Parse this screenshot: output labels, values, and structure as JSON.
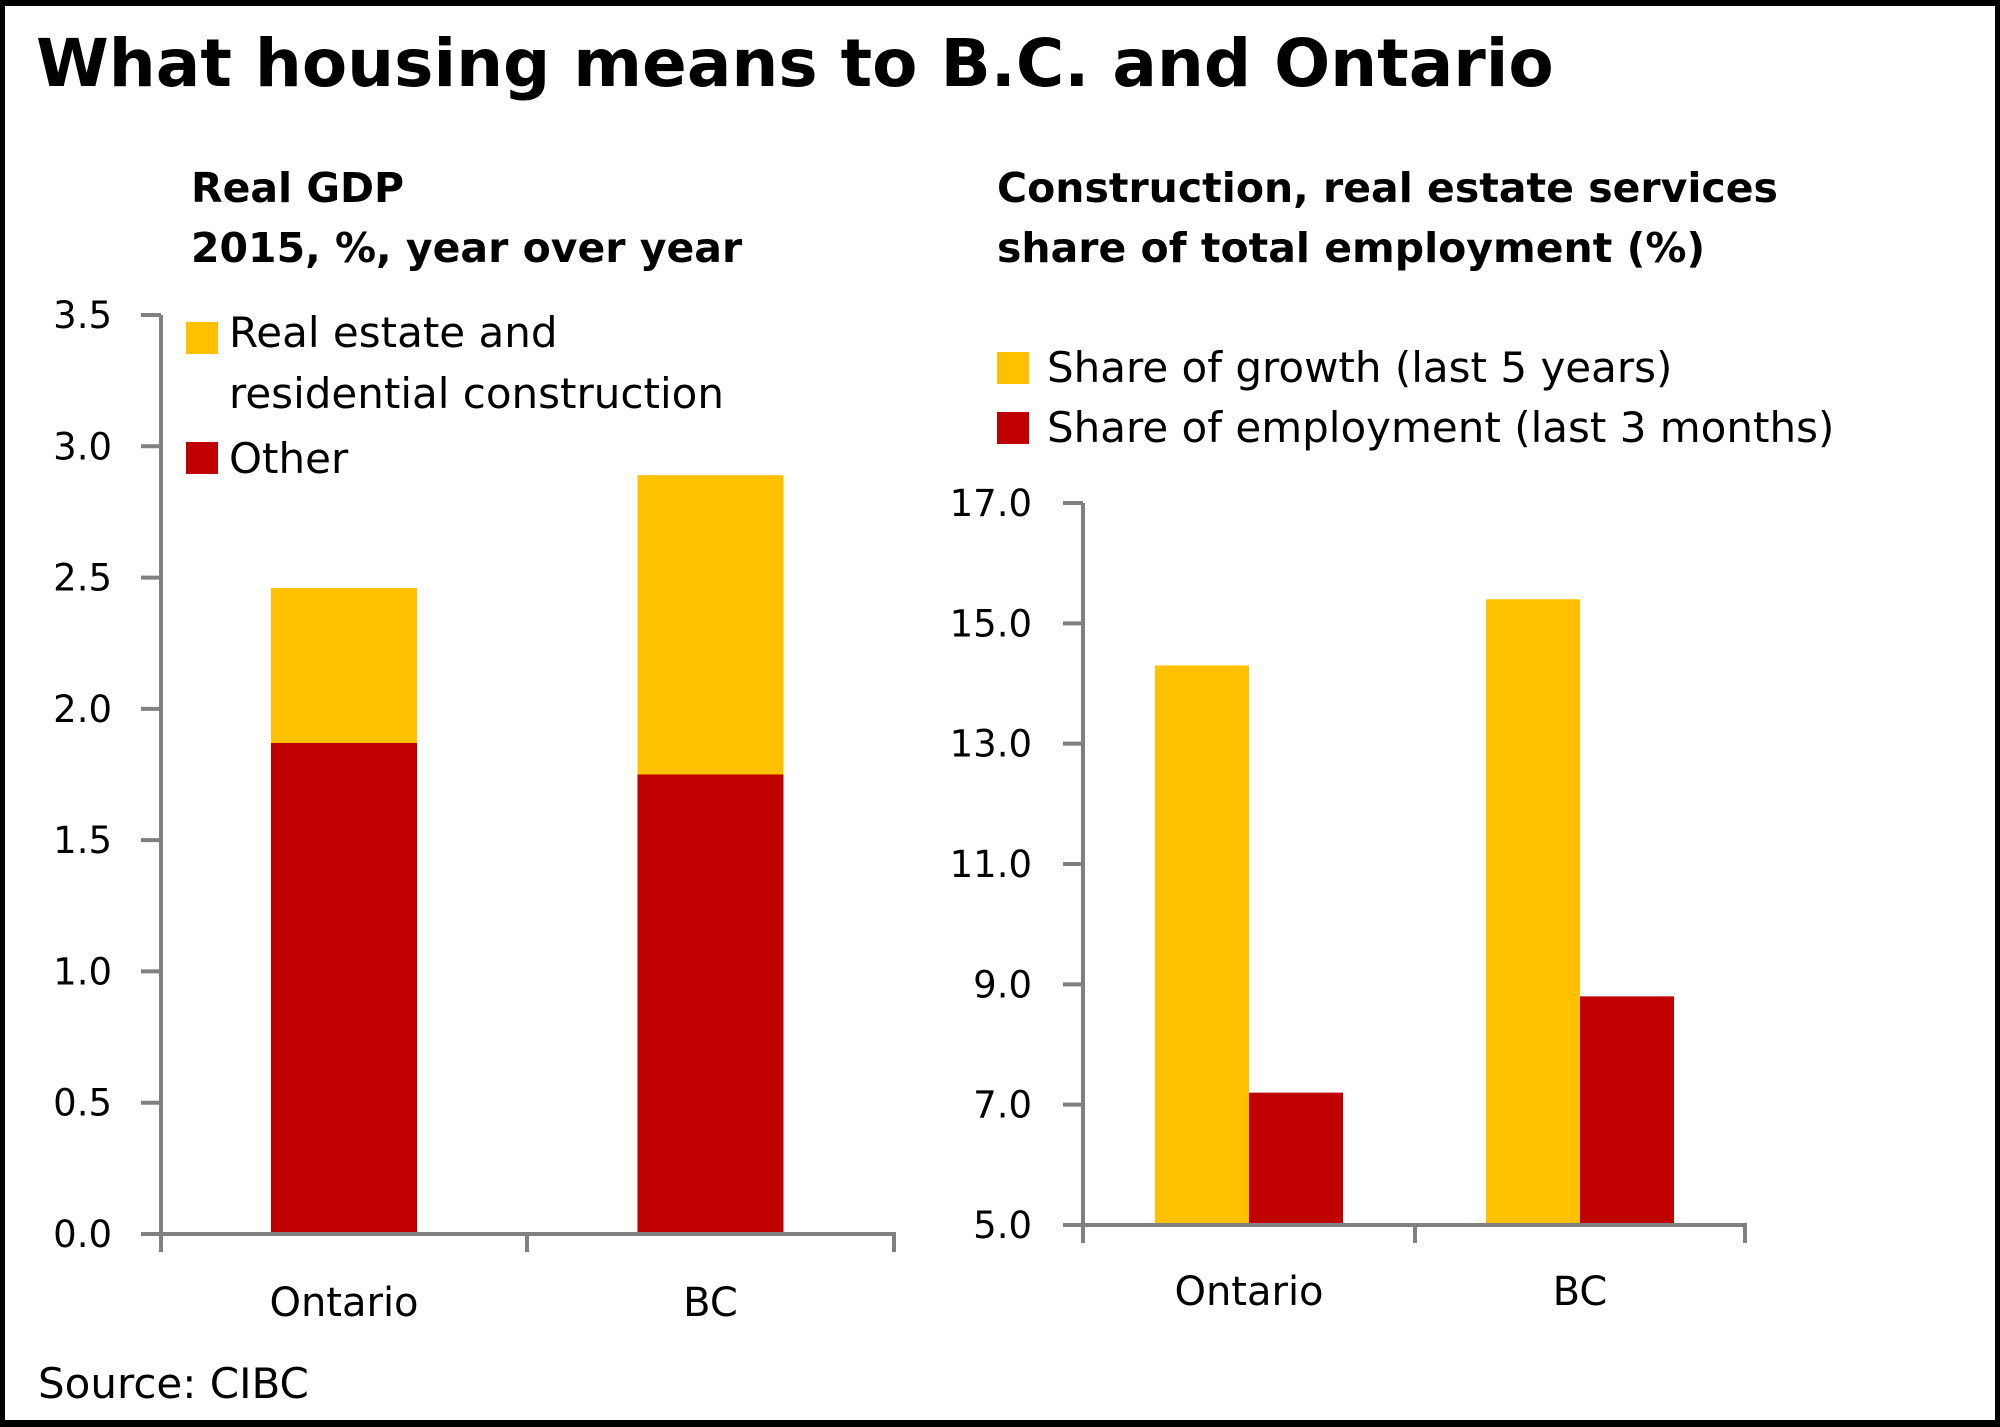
{
  "title": "What housing means to B.C. and Ontario",
  "source": "Source: CIBC",
  "colors": {
    "yellow": "#FFC000",
    "red": "#C00000",
    "axis": "#808080"
  },
  "chart_data": [
    {
      "type": "bar",
      "stacked": true,
      "title_lines": [
        "Real GDP",
        "2015, %, year over year"
      ],
      "categories": [
        "Ontario",
        "BC"
      ],
      "series": [
        {
          "name": "Other",
          "color": "#C00000",
          "values": [
            1.87,
            1.75
          ]
        },
        {
          "name_lines": [
            "Real estate and",
            "residential construction"
          ],
          "name": "Real estate and residential construction",
          "color": "#FFC000",
          "values": [
            0.59,
            1.14
          ]
        }
      ],
      "ylim": [
        0.0,
        3.5
      ],
      "yticks": [
        "0.0",
        "0.5",
        "1.0",
        "1.5",
        "2.0",
        "2.5",
        "3.0",
        "3.5"
      ],
      "ytick_values": [
        0.0,
        0.5,
        1.0,
        1.5,
        2.0,
        2.5,
        3.0,
        3.5
      ],
      "legend_order": [
        1,
        0
      ],
      "legend_position": "top-left",
      "grid": false,
      "xlabel": "",
      "ylabel": ""
    },
    {
      "type": "bar",
      "stacked": false,
      "title_lines": [
        "Construction, real estate services",
        "share of total employment (%)"
      ],
      "categories": [
        "Ontario",
        "BC"
      ],
      "series": [
        {
          "name": "Share of growth (last 5 years)",
          "color": "#FFC000",
          "values": [
            14.3,
            15.4
          ]
        },
        {
          "name": "Share of employment (last 3 months)",
          "color": "#C00000",
          "values": [
            7.2,
            8.8
          ]
        }
      ],
      "ylim": [
        5.0,
        17.0
      ],
      "yticks": [
        "5.0",
        "7.0",
        "9.0",
        "11.0",
        "13.0",
        "15.0",
        "17.0"
      ],
      "ytick_values": [
        5.0,
        7.0,
        9.0,
        11.0,
        13.0,
        15.0,
        17.0
      ],
      "legend_order": [
        0,
        1
      ],
      "legend_position": "top",
      "grid": false,
      "xlabel": "",
      "ylabel": ""
    }
  ]
}
